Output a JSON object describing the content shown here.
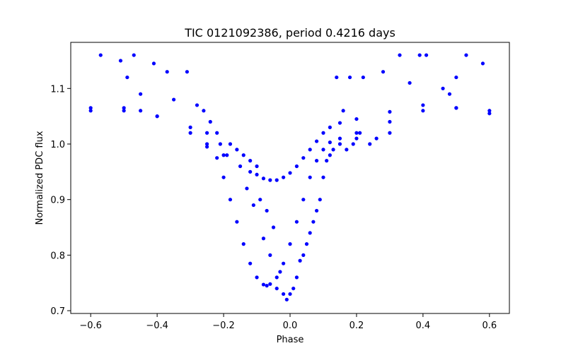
{
  "chart_data": {
    "type": "scatter",
    "title": "TIC 0121092386, period 0.4216 days",
    "xlabel": "Phase",
    "ylabel": "Normalized PDC flux",
    "xlim": [
      -0.66,
      0.66
    ],
    "ylim": [
      0.695,
      1.183
    ],
    "xticks": [
      -0.6,
      -0.4,
      -0.2,
      0.0,
      0.2,
      0.4,
      0.6
    ],
    "xtick_labels": [
      "−0.6",
      "−0.4",
      "−0.2",
      "0.0",
      "0.2",
      "0.4",
      "0.6"
    ],
    "yticks": [
      0.7,
      0.8,
      0.9,
      1.0,
      1.1
    ],
    "ytick_labels": [
      "0.7",
      "0.8",
      "0.9",
      "1.0",
      "1.1"
    ],
    "grid": false,
    "marker_color": "#0000ff",
    "series": [
      {
        "role": "primary-eclipse-curve",
        "x": [
          -0.6,
          -0.5,
          -0.4,
          -0.3,
          -0.25,
          -0.22,
          -0.2,
          -0.18,
          -0.16,
          -0.14,
          -0.12,
          -0.1,
          -0.08,
          -0.07,
          -0.06,
          -0.04,
          -0.02,
          0.0,
          0.02,
          0.04,
          0.06,
          0.08,
          0.1,
          0.12,
          0.15,
          0.2,
          0.3,
          0.4,
          0.5,
          0.6
        ],
        "y": [
          1.065,
          1.06,
          1.05,
          1.03,
          1.0,
          0.975,
          0.94,
          0.9,
          0.86,
          0.82,
          0.785,
          0.76,
          0.747,
          0.745,
          0.748,
          0.76,
          0.785,
          0.82,
          0.86,
          0.9,
          0.94,
          0.97,
          0.99,
          1.003,
          1.01,
          1.02,
          1.04,
          1.06,
          1.065,
          1.06
        ]
      },
      {
        "role": "secondary-curve",
        "x": [
          -0.6,
          -0.5,
          -0.45,
          -0.4,
          -0.3,
          -0.25,
          -0.2,
          -0.15,
          -0.12,
          -0.1,
          -0.08,
          -0.06,
          -0.04,
          -0.02,
          0.0,
          0.02,
          0.04,
          0.06,
          0.08,
          0.1,
          0.12,
          0.15,
          0.2,
          0.3,
          0.4,
          0.5,
          0.6
        ],
        "y": [
          1.06,
          1.065,
          1.06,
          1.05,
          1.02,
          0.995,
          0.98,
          0.96,
          0.95,
          0.945,
          0.938,
          0.935,
          0.935,
          0.94,
          0.948,
          0.96,
          0.975,
          0.99,
          1.005,
          1.02,
          1.03,
          1.038,
          1.045,
          1.058,
          1.07,
          1.065,
          1.055
        ]
      },
      {
        "role": "scattered-points",
        "x": [
          -0.57,
          -0.51,
          -0.49,
          -0.47,
          -0.41,
          -0.37,
          -0.31,
          -0.45,
          -0.35,
          -0.28,
          -0.26,
          -0.24,
          -0.22,
          -0.18,
          -0.16,
          -0.14,
          -0.12,
          -0.1,
          -0.08,
          -0.06,
          -0.05,
          -0.04,
          -0.03,
          -0.02,
          -0.01,
          0.0,
          0.01,
          0.02,
          0.03,
          0.04,
          0.05,
          0.06,
          0.07,
          0.08,
          0.09,
          0.1,
          0.12,
          0.14,
          0.16,
          0.18,
          0.2,
          0.22,
          0.24,
          0.26,
          0.28,
          0.3,
          0.33,
          0.36,
          0.39,
          0.41,
          0.46,
          0.48,
          0.5,
          0.53,
          0.58,
          -0.25,
          -0.21,
          -0.19,
          -0.13,
          -0.11,
          -0.07,
          -0.09,
          0.11,
          0.13,
          0.15,
          0.17,
          0.19,
          0.21
        ],
        "y": [
          1.16,
          1.15,
          1.12,
          1.16,
          1.145,
          1.13,
          1.13,
          1.09,
          1.08,
          1.07,
          1.06,
          1.04,
          1.02,
          1.0,
          0.99,
          0.98,
          0.97,
          0.96,
          0.83,
          0.8,
          0.85,
          0.74,
          0.77,
          0.73,
          0.72,
          0.73,
          0.74,
          0.76,
          0.79,
          0.8,
          0.82,
          0.84,
          0.86,
          0.88,
          0.9,
          0.94,
          0.98,
          1.12,
          1.06,
          1.12,
          1.01,
          1.12,
          1.0,
          1.01,
          1.13,
          1.02,
          1.16,
          1.11,
          1.16,
          1.16,
          1.1,
          1.09,
          1.12,
          1.16,
          1.145,
          1.02,
          1.0,
          0.98,
          0.92,
          0.89,
          0.88,
          0.9,
          0.97,
          0.99,
          1.0,
          0.99,
          1.0,
          1.02
        ]
      }
    ]
  }
}
